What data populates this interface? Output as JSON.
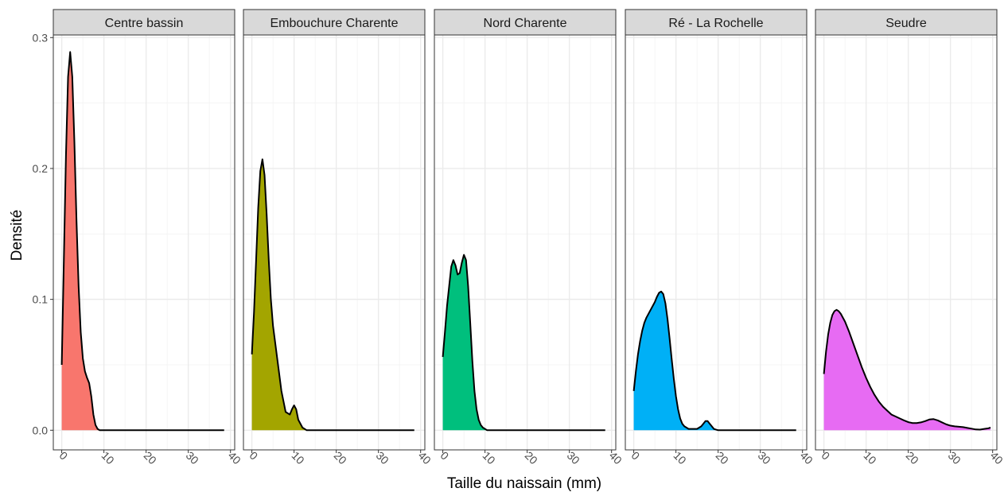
{
  "chart_data": {
    "type": "area",
    "xlabel": "Taille du naissain (mm)",
    "ylabel": "Densité",
    "xlim": [
      -2,
      41
    ],
    "ylim": [
      -0.015,
      0.302
    ],
    "x_ticks": [
      0,
      10,
      20,
      30,
      40
    ],
    "x_tick_labels": [
      "0",
      "10",
      "20",
      "30",
      "40"
    ],
    "y_ticks": [
      0.0,
      0.1,
      0.2,
      0.3
    ],
    "y_tick_labels": [
      "0.0",
      "0.1",
      "0.2",
      "0.3"
    ],
    "grid": true,
    "legend": "none",
    "facets": [
      {
        "name": "Centre bassin",
        "color": "#F8766D",
        "x": [
          0,
          0.5,
          1,
          1.5,
          2,
          2.5,
          3,
          3.5,
          4,
          4.5,
          5,
          5.5,
          6,
          6.5,
          7,
          7.5,
          8,
          8.5,
          9,
          10,
          15,
          20,
          25,
          30,
          35,
          38.5
        ],
        "y": [
          0.05,
          0.13,
          0.21,
          0.27,
          0.289,
          0.27,
          0.22,
          0.16,
          0.11,
          0.075,
          0.055,
          0.045,
          0.04,
          0.036,
          0.026,
          0.012,
          0.004,
          0.001,
          0,
          0,
          0,
          0,
          0,
          0,
          0,
          0
        ]
      },
      {
        "name": "Embouchure Charente",
        "color": "#A3A500",
        "x": [
          0,
          0.5,
          1,
          1.5,
          2,
          2.5,
          3,
          3.5,
          4,
          4.5,
          5,
          6,
          7,
          8,
          9,
          9.5,
          10,
          10.5,
          11,
          12,
          13,
          14,
          15,
          20,
          25,
          30,
          35,
          38.5
        ],
        "y": [
          0.058,
          0.09,
          0.13,
          0.17,
          0.198,
          0.207,
          0.195,
          0.165,
          0.13,
          0.1,
          0.08,
          0.055,
          0.03,
          0.014,
          0.012,
          0.016,
          0.019,
          0.016,
          0.008,
          0.002,
          0,
          0,
          0,
          0,
          0,
          0,
          0,
          0
        ]
      },
      {
        "name": "Nord Charente",
        "color": "#00BF7D",
        "x": [
          0,
          0.5,
          1,
          1.5,
          2,
          2.5,
          3,
          3.5,
          4,
          4.5,
          5,
          5.5,
          6,
          6.5,
          7,
          7.5,
          8,
          8.5,
          9,
          9.5,
          10,
          10.5,
          11,
          11.5,
          12,
          15,
          20,
          25,
          30,
          35,
          38.5
        ],
        "y": [
          0.056,
          0.075,
          0.095,
          0.11,
          0.125,
          0.13,
          0.126,
          0.119,
          0.12,
          0.128,
          0.134,
          0.13,
          0.11,
          0.082,
          0.053,
          0.03,
          0.016,
          0.008,
          0.004,
          0.002,
          0.001,
          0,
          0,
          0,
          0,
          0,
          0,
          0,
          0,
          0,
          0
        ]
      },
      {
        "name": "Ré - La Rochelle",
        "color": "#00B0F6",
        "x": [
          0,
          0.5,
          1,
          1.5,
          2,
          2.5,
          3,
          4,
          5,
          5.5,
          6,
          6.5,
          7,
          7.5,
          8,
          8.5,
          9,
          9.5,
          10,
          10.5,
          11,
          11.5,
          12,
          13,
          14,
          15,
          16,
          16.5,
          17,
          17.5,
          18,
          18.5,
          19,
          20,
          21,
          25,
          30,
          35,
          38.5
        ],
        "y": [
          0.03,
          0.045,
          0.058,
          0.068,
          0.076,
          0.082,
          0.086,
          0.092,
          0.098,
          0.102,
          0.105,
          0.106,
          0.104,
          0.097,
          0.085,
          0.07,
          0.054,
          0.039,
          0.026,
          0.016,
          0.009,
          0.005,
          0.003,
          0.001,
          0.001,
          0.001,
          0.003,
          0.005,
          0.007,
          0.007,
          0.005,
          0.003,
          0.001,
          0,
          0,
          0,
          0,
          0,
          0
        ]
      },
      {
        "name": "Seudre",
        "color": "#E76BF3",
        "x": [
          0,
          0.5,
          1,
          1.5,
          2,
          2.5,
          3,
          3.5,
          4,
          5,
          6,
          7,
          8,
          9,
          10,
          11,
          12,
          13,
          14,
          15,
          16,
          17,
          18,
          19,
          20,
          21,
          22,
          23,
          24,
          25,
          26,
          27,
          28,
          29,
          30,
          31,
          32,
          33,
          34,
          35,
          36,
          37,
          38,
          39,
          39.5
        ],
        "y": [
          0.043,
          0.06,
          0.073,
          0.082,
          0.088,
          0.091,
          0.092,
          0.091,
          0.089,
          0.083,
          0.075,
          0.066,
          0.057,
          0.048,
          0.04,
          0.033,
          0.027,
          0.022,
          0.018,
          0.015,
          0.012,
          0.0105,
          0.009,
          0.0075,
          0.0062,
          0.0055,
          0.0055,
          0.006,
          0.007,
          0.0082,
          0.0085,
          0.0075,
          0.006,
          0.0045,
          0.0035,
          0.003,
          0.0027,
          0.0024,
          0.0018,
          0.0012,
          0.0006,
          0.0005,
          0.001,
          0.0015,
          0.002
        ]
      }
    ]
  }
}
